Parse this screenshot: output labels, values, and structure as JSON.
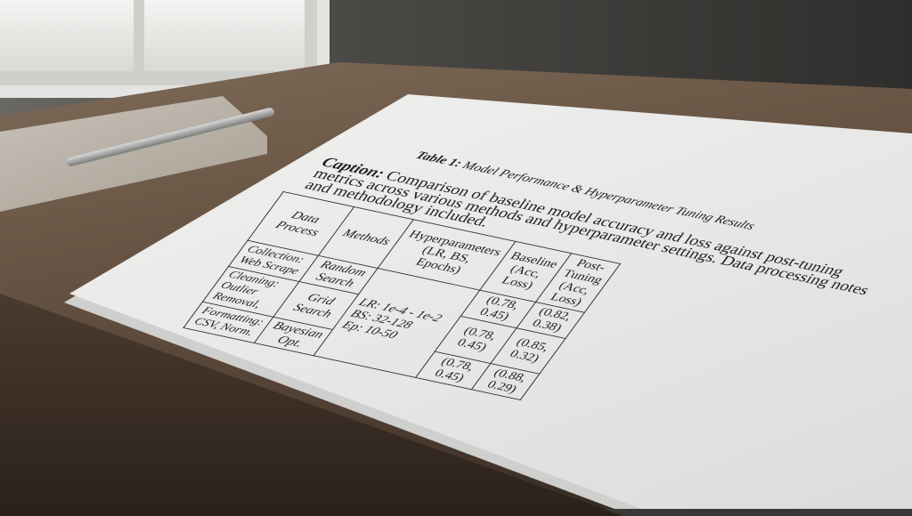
{
  "title": {
    "label": "Table 1:",
    "text": "Model Performance & Hyperparameter Tuning Results"
  },
  "caption": {
    "label": "Caption:",
    "text": "Comparison of baseline model accuracy and loss against post-tuning metrics across various methods and hyperparameter settings. Data processing notes and methodology included."
  },
  "table": {
    "headers": [
      "Data Process",
      "Methods",
      "Hyperparameters (LR, BS, Epochs)",
      "Baseline (Acc, Loss)",
      "Post-Tuning (Acc, Loss)"
    ],
    "data_process": [
      "Collection: Web Scrape",
      "Cleaning: Outlier Removal,",
      "Formatting: CSV, Norm."
    ],
    "methods": [
      "Random Search",
      "Grid Search",
      "Bayesian Opt."
    ],
    "hyperparameters": [
      "LR: 1e-4 - 1e-2",
      "BS: 32-128",
      "Ep: 10-50"
    ],
    "baseline": [
      "(0.78, 0.45)",
      "(0.78, 0.45)",
      "(0.78, 0.45)"
    ],
    "post_tuning": [
      "(0.82, 0.38)",
      "(0.85, 0.32)",
      "(0.88, 0.29)"
    ]
  }
}
